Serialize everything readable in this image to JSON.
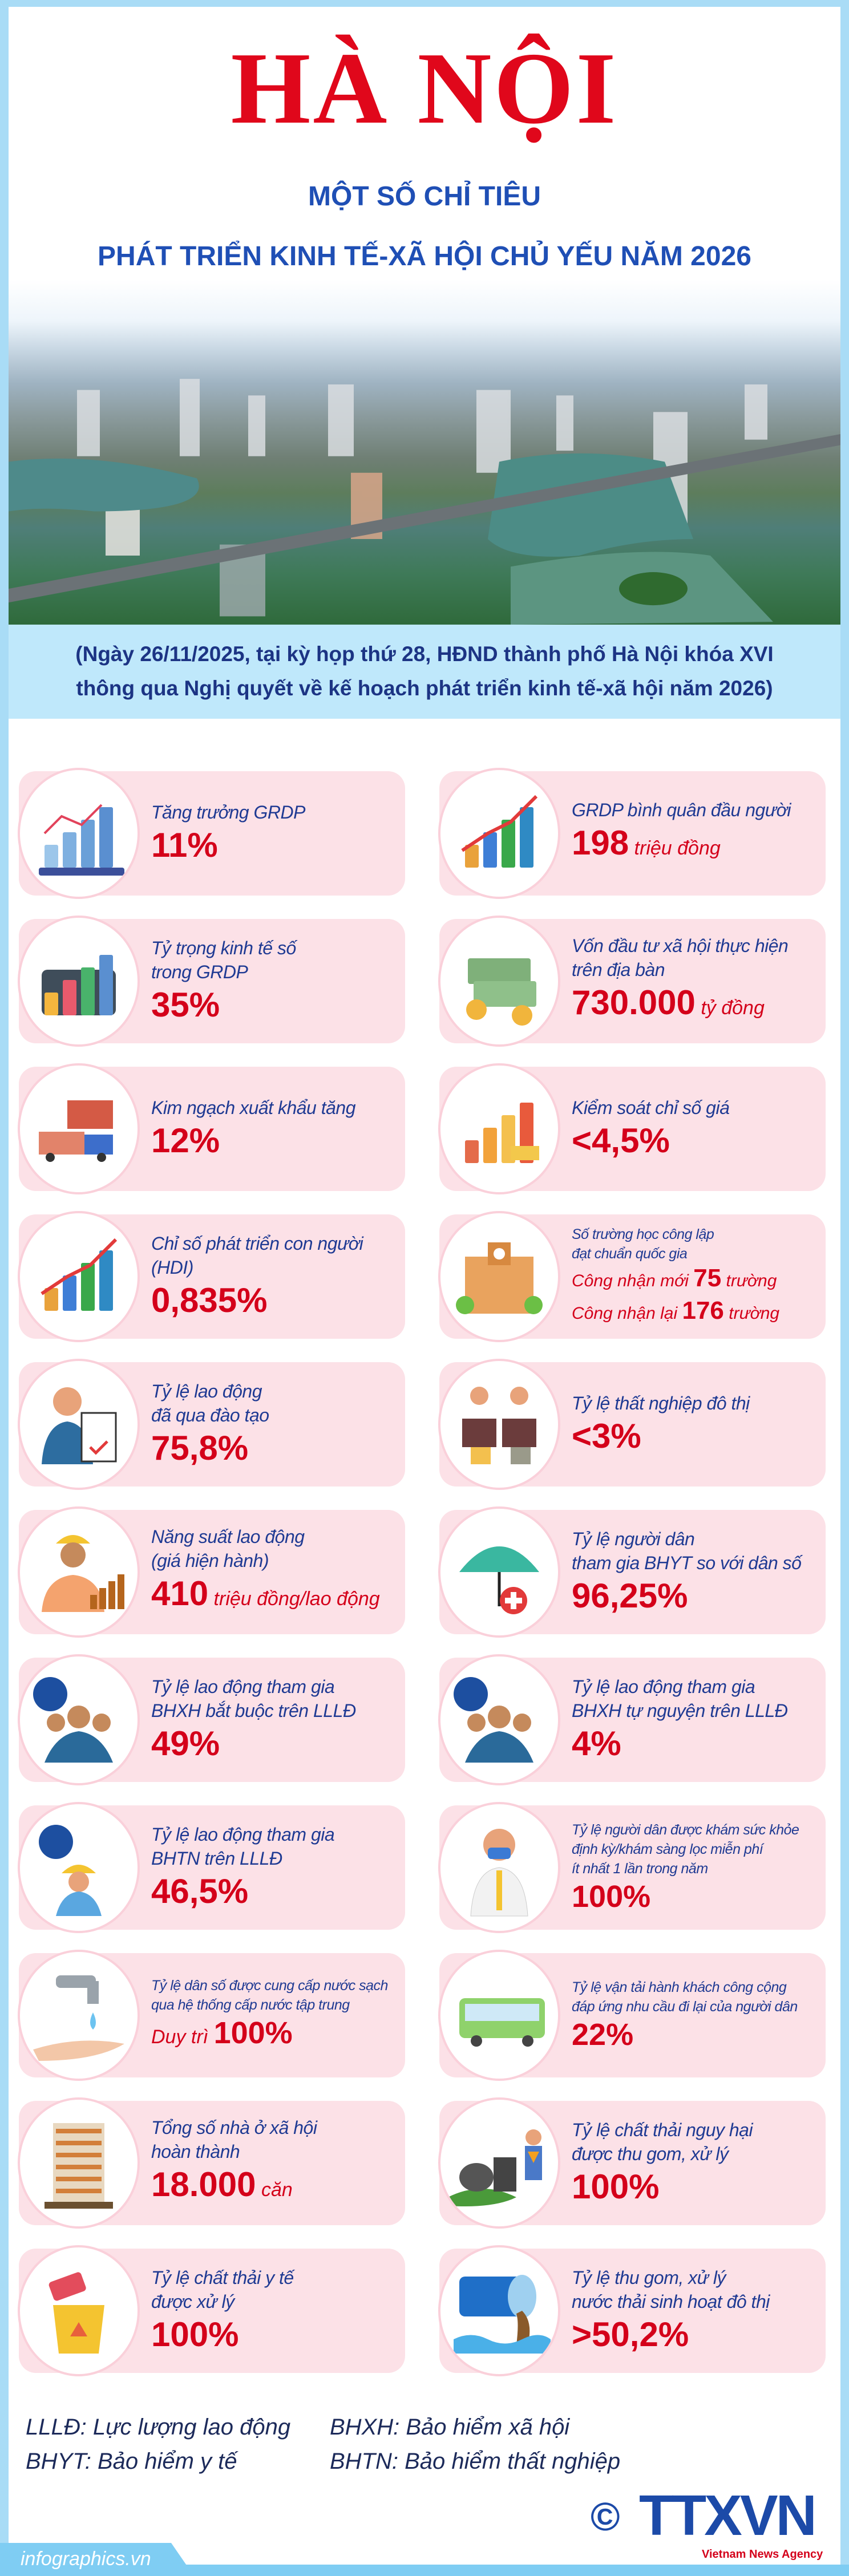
{
  "header": {
    "title": "HÀ NỘI",
    "subtitle_line1": "MỘT SỐ CHỈ TIÊU",
    "subtitle_line2": "PHÁT TRIỂN KINH TẾ-XÃ HỘI CHỦ YẾU NĂM 2026"
  },
  "caption": {
    "line1": "(Ngày 26/11/2025, tại kỳ họp thứ 28, HĐND thành phố Hà Nội khóa XVI",
    "line2": "thông qua Nghị quyết về kế hoạch phát triển kinh tế-xã hội năm 2026)"
  },
  "colors": {
    "title": "#e0071b",
    "subtitle": "#1f4fb5",
    "label": "#1f3a93",
    "value": "#d4001a",
    "card": "#fce1e7",
    "border": "#a9dcf6"
  },
  "indicators": [
    {
      "icon": "gdp-chart-icon",
      "label": [
        "Tăng trưởng GRDP"
      ],
      "value": [
        {
          "t": "11%"
        }
      ]
    },
    {
      "icon": "growth-chart-icon",
      "label": [
        "GRDP bình quân đầu người"
      ],
      "value": [
        {
          "t": "198"
        },
        {
          "t": " triệu đồng",
          "u": true
        }
      ]
    },
    {
      "icon": "digital-economy-icon",
      "label": [
        "Tỷ trọng kinh tế số",
        "trong GRDP"
      ],
      "value": [
        {
          "t": "35%"
        }
      ]
    },
    {
      "icon": "money-stack-icon",
      "label": [
        "Vốn đầu tư xã hội thực hiện",
        "trên địa bàn"
      ],
      "value": [
        {
          "t": "730.000"
        },
        {
          "t": " tỷ đồng",
          "u": true
        }
      ]
    },
    {
      "icon": "export-truck-icon",
      "label": [
        "Kim ngạch xuất khẩu tăng"
      ],
      "value": [
        {
          "t": "12%"
        }
      ]
    },
    {
      "icon": "price-index-icon",
      "label": [
        "Kiểm soát chỉ số giá"
      ],
      "value": [
        {
          "t": "<4,5%"
        }
      ]
    },
    {
      "icon": "hdi-chart-icon",
      "label": [
        "Chỉ số phát triển con người",
        "(HDI)"
      ],
      "value": [
        {
          "t": "0,835%"
        }
      ]
    },
    {
      "icon": "school-icon",
      "small": true,
      "label": [
        "Số trường học công lập",
        "đạt chuẩn quốc gia"
      ],
      "value": [
        {
          "t": "Công nhận mới ",
          "u": true
        },
        {
          "t": "75"
        },
        {
          "t": " trường",
          "u": true
        }
      ],
      "value2": [
        {
          "t": "Công nhận lại ",
          "u": true
        },
        {
          "t": "176"
        },
        {
          "t": " trường",
          "u": true
        }
      ]
    },
    {
      "icon": "trained-worker-icon",
      "label": [
        "Tỷ lệ lao động",
        "đã qua đào tạo"
      ],
      "value": [
        {
          "t": "75,8%"
        }
      ]
    },
    {
      "icon": "unemployment-icon",
      "label": [
        "Tỷ lệ thất nghiệp đô thị"
      ],
      "value": [
        {
          "t": "<3%"
        }
      ]
    },
    {
      "icon": "productivity-worker-icon",
      "label": [
        "Năng suất lao động",
        "(giá hiện hành)"
      ],
      "value": [
        {
          "t": "410"
        },
        {
          "t": " triệu đồng/lao động",
          "u": true
        }
      ]
    },
    {
      "icon": "health-insurance-umbrella-icon",
      "label": [
        "Tỷ lệ người dân",
        "tham gia BHYT so với dân số"
      ],
      "value": [
        {
          "t": "96,25%"
        }
      ]
    },
    {
      "icon": "social-insurance-group-icon",
      "label": [
        "Tỷ lệ lao động tham gia",
        "BHXH bắt buộc trên LLLĐ"
      ],
      "value": [
        {
          "t": "49%"
        }
      ]
    },
    {
      "icon": "social-insurance-group-icon",
      "label": [
        "Tỷ lệ lao động tham gia",
        "BHXH tự nguyện trên LLLĐ"
      ],
      "value": [
        {
          "t": "4%"
        }
      ]
    },
    {
      "icon": "unemployment-insurance-worker-icon",
      "label": [
        "Tỷ lệ lao động tham gia",
        "BHTN trên LLLĐ"
      ],
      "value": [
        {
          "t": "46,5%"
        }
      ]
    },
    {
      "icon": "doctor-icon",
      "small": true,
      "label": [
        "Tỷ lệ người dân được khám sức khỏe",
        "định kỳ/khám sàng lọc miễn phí",
        "ít nhất 1 lần trong năm"
      ],
      "value": [
        {
          "t": "100%"
        }
      ]
    },
    {
      "icon": "water-tap-icon",
      "small": true,
      "label": [
        "Tỷ lệ dân số được cung cấp nước sạch",
        "qua hệ thống cấp nước tập trung"
      ],
      "value": [
        {
          "t": "Duy trì ",
          "u": true
        },
        {
          "t": "100%"
        }
      ]
    },
    {
      "icon": "public-bus-icon",
      "small": true,
      "label": [
        "Tỷ lệ vận tải hành khách công cộng",
        "đáp ứng nhu cầu đi lại của người dân"
      ],
      "value": [
        {
          "t": "22%"
        }
      ]
    },
    {
      "icon": "apartment-building-icon",
      "label": [
        "Tổng số nhà ở xã hội",
        "hoàn thành"
      ],
      "value": [
        {
          "t": "18.000"
        },
        {
          "t": " căn",
          "u": true
        }
      ]
    },
    {
      "icon": "hazardous-waste-icon",
      "label": [
        "Tỷ lệ chất thải nguy hại",
        "được thu gom, xử lý"
      ],
      "value": [
        {
          "t": "100%"
        }
      ]
    },
    {
      "icon": "medical-waste-bin-icon",
      "label": [
        "Tỷ lệ chất thải y tế",
        "được xử lý"
      ],
      "value": [
        {
          "t": "100%"
        }
      ]
    },
    {
      "icon": "wastewater-pipe-icon",
      "label": [
        "Tỷ lệ thu gom, xử lý",
        "nước thải sinh hoạt đô thị"
      ],
      "value": [
        {
          "t": ">50,2%"
        }
      ]
    }
  ],
  "legend": {
    "lllđ": "LLLĐ: Lực lượng lao động",
    "bhyt": "BHYT: Bảo hiểm y tế",
    "bhxh": "BHXH: Bảo hiểm xã hội",
    "bhtn": "BHTN: Bảo hiểm thất nghiệp"
  },
  "footer": {
    "copyright": "©",
    "logo": "TTXVN",
    "logo_sub": "Vietnam News Agency",
    "site": "infographics.vn"
  }
}
